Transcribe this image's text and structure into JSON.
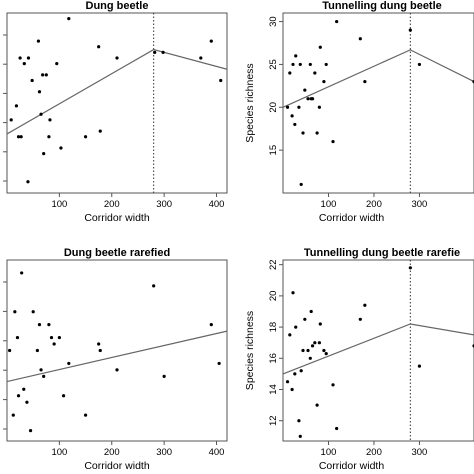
{
  "chart_data": [
    {
      "type": "scatter",
      "title": "Dung beetle",
      "xlabel": "Corridor width",
      "ylabel": "",
      "xlim": [
        0,
        420
      ],
      "ylim": [
        20,
        52
      ],
      "xticks": [
        100,
        200,
        300,
        400
      ],
      "yticks": [],
      "points": {
        "x": [
          8,
          18,
          22,
          27,
          25,
          33,
          41,
          40,
          48,
          60,
          62,
          65,
          68,
          70,
          75,
          80,
          82,
          95,
          103,
          118,
          150,
          175,
          178,
          210,
          282,
          298,
          370,
          390,
          408
        ],
        "y": [
          33,
          35.5,
          30,
          30,
          44,
          43,
          44,
          22,
          40,
          47,
          38,
          34,
          41,
          27,
          41,
          30,
          33,
          43,
          28,
          51,
          30,
          46,
          31,
          44,
          45,
          45,
          44,
          47,
          40
        ]
      },
      "breakpoint_x": 280,
      "fit_line": {
        "x": [
          0,
          280,
          420
        ],
        "y": [
          30.5,
          45.5,
          42
        ]
      }
    },
    {
      "type": "scatter",
      "title": "Tunnelling dung beetle",
      "xlabel": "Corridor width",
      "ylabel": "Species richness",
      "xlim": [
        0,
        420
      ],
      "ylim": [
        10,
        31
      ],
      "xticks": [
        100,
        200,
        300
      ],
      "yticks": [
        15,
        20,
        25,
        30
      ],
      "points": {
        "x": [
          10,
          15,
          20,
          22,
          26,
          28,
          35,
          38,
          40,
          44,
          48,
          55,
          60,
          62,
          65,
          70,
          75,
          80,
          82,
          90,
          95,
          110,
          118,
          170,
          180,
          280,
          300,
          420
        ],
        "y": [
          20,
          24,
          19,
          25,
          18,
          26,
          20,
          25,
          11,
          17,
          22,
          21,
          25,
          21,
          21,
          24,
          17,
          20,
          27,
          23,
          25,
          16,
          30,
          28,
          23,
          29,
          25,
          23
        ]
      },
      "breakpoint_x": 280,
      "fit_line": {
        "x": [
          0,
          280,
          420
        ],
        "y": [
          20,
          26.7,
          23
        ]
      }
    },
    {
      "type": "scatter",
      "title": "Dung beetle rarefied",
      "xlabel": "Corridor width",
      "ylabel": "",
      "xlim": [
        0,
        420
      ],
      "ylim": [
        12,
        26
      ],
      "xticks": [
        100,
        200,
        300,
        400
      ],
      "yticks": [],
      "points": {
        "x": [
          5,
          12,
          15,
          20,
          22,
          28,
          32,
          38,
          45,
          50,
          58,
          62,
          65,
          70,
          80,
          85,
          90,
          100,
          108,
          118,
          150,
          175,
          178,
          210,
          280,
          300,
          390,
          405
        ],
        "y": [
          19,
          14,
          22,
          20,
          15.5,
          25,
          16,
          15,
          12.8,
          22,
          19,
          21,
          17.5,
          17,
          21,
          20,
          19.5,
          20,
          15.5,
          18,
          14,
          19.5,
          19,
          17.5,
          24,
          17,
          21,
          18
        ]
      },
      "fit_line": {
        "x": [
          0,
          420
        ],
        "y": [
          16.6,
          20.5
        ]
      }
    },
    {
      "type": "scatter",
      "title": "Tunnelling dung beetle rarefie",
      "xlabel": "Corridor width",
      "ylabel": "Species richness",
      "xlim": [
        0,
        420
      ],
      "ylim": [
        10.7,
        22.3
      ],
      "xticks": [
        100,
        200,
        300
      ],
      "yticks": [
        12,
        14,
        16,
        18,
        20,
        22
      ],
      "points": {
        "x": [
          10,
          15,
          20,
          22,
          26,
          28,
          35,
          38,
          40,
          44,
          48,
          55,
          60,
          62,
          65,
          70,
          75,
          80,
          82,
          90,
          95,
          110,
          118,
          170,
          180,
          280,
          300,
          420
        ],
        "y": [
          14.5,
          17.5,
          14,
          20.2,
          15,
          18,
          12,
          11,
          15.2,
          16.5,
          18.5,
          16.5,
          16,
          19,
          16.8,
          17,
          13,
          17,
          18.2,
          16.5,
          16.3,
          14.3,
          11.5,
          18.5,
          19.4,
          21.8,
          15.5,
          16.8
        ]
      },
      "breakpoint_x": 280,
      "fit_line": {
        "x": [
          0,
          280,
          420
        ],
        "y": [
          15,
          18.2,
          17.5
        ]
      }
    }
  ]
}
